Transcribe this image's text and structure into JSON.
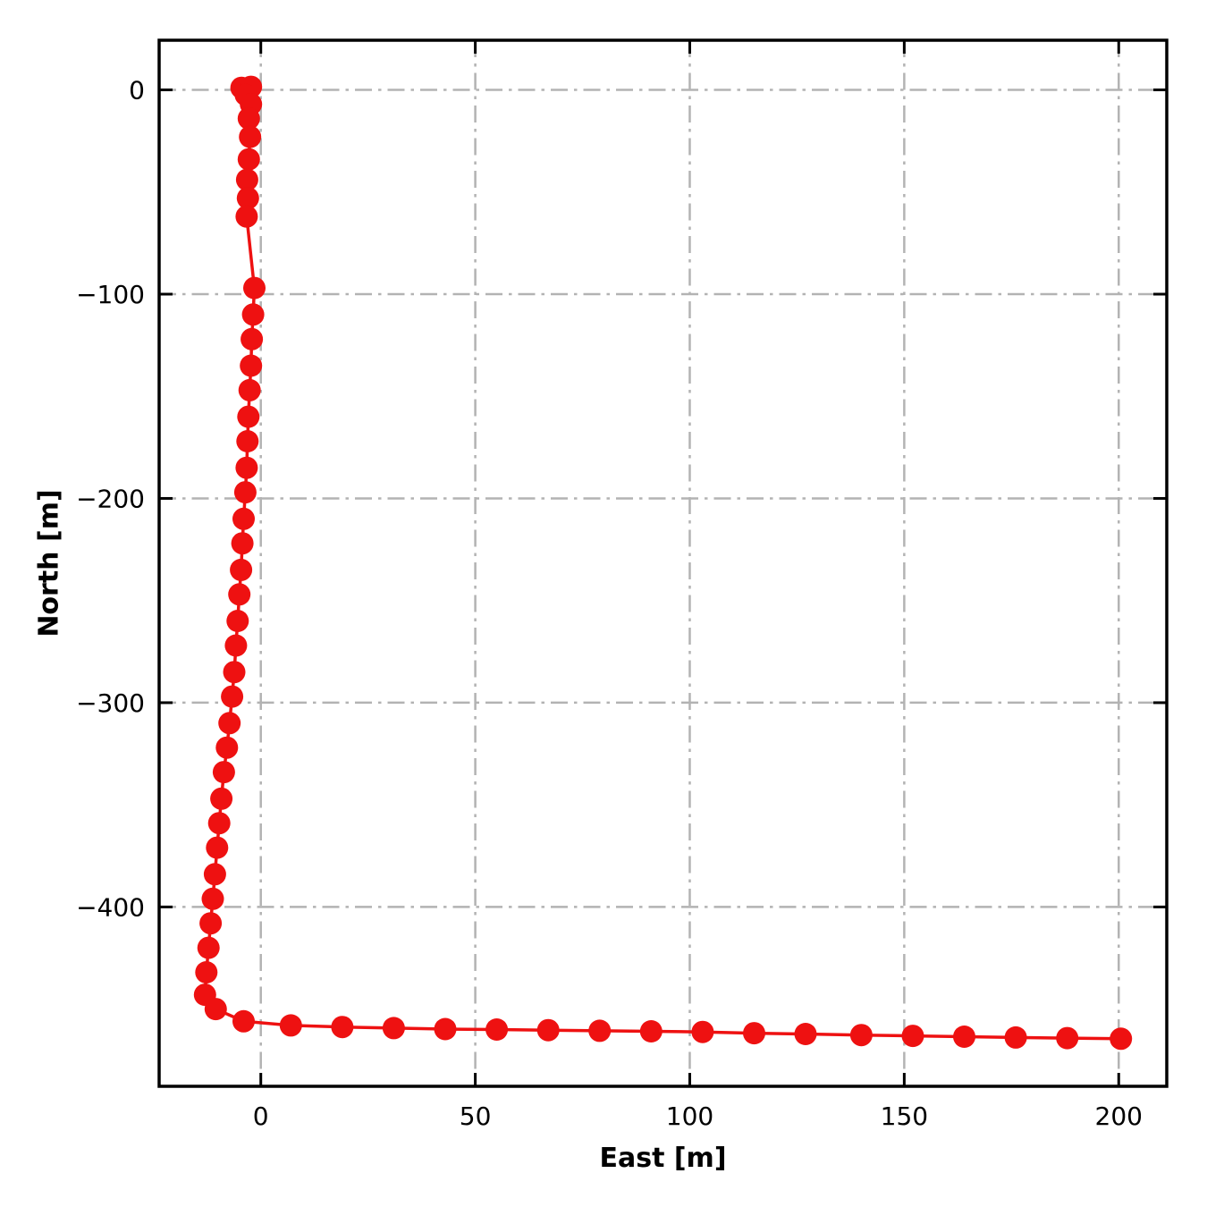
{
  "chart_data": {
    "type": "line",
    "title": "",
    "xlabel": "East [m]",
    "ylabel": "North [m]",
    "xlim": [
      -23.7,
      211.2
    ],
    "ylim": [
      -487.8,
      24.3
    ],
    "xticks": [
      0,
      50,
      100,
      150,
      200
    ],
    "xtick_labels": [
      "0",
      "50",
      "100",
      "150",
      "200"
    ],
    "yticks": [
      0,
      -100,
      -200,
      -300,
      -400
    ],
    "ytick_labels": [
      "0",
      "−100",
      "−200",
      "−300",
      "−400"
    ],
    "grid": true,
    "grid_style": "dash-dot",
    "legend": "none",
    "series": [
      {
        "name": "trajectory",
        "color": "#ee1111",
        "marker": "circle",
        "marker_radius": 12.5,
        "line_width": 3.5,
        "points": [
          [
            -4.5,
            1
          ],
          [
            -2.3,
            1.5
          ],
          [
            -3.5,
            -2.5
          ],
          [
            -2.3,
            -7
          ],
          [
            -2.8,
            -14
          ],
          [
            -2.5,
            -23
          ],
          [
            -2.8,
            -34
          ],
          [
            -3.2,
            -44
          ],
          [
            -3.0,
            -53
          ],
          [
            -3.3,
            -62
          ],
          [
            -1.5,
            -97
          ],
          [
            -1.8,
            -110
          ],
          [
            -2.1,
            -122
          ],
          [
            -2.3,
            -135
          ],
          [
            -2.6,
            -147
          ],
          [
            -2.9,
            -160
          ],
          [
            -3.1,
            -172
          ],
          [
            -3.3,
            -185
          ],
          [
            -3.6,
            -197
          ],
          [
            -4.0,
            -210
          ],
          [
            -4.3,
            -222
          ],
          [
            -4.6,
            -235
          ],
          [
            -5.0,
            -247
          ],
          [
            -5.4,
            -260
          ],
          [
            -5.8,
            -272
          ],
          [
            -6.2,
            -285
          ],
          [
            -6.7,
            -297
          ],
          [
            -7.3,
            -310
          ],
          [
            -7.9,
            -322
          ],
          [
            -8.6,
            -334
          ],
          [
            -9.2,
            -347
          ],
          [
            -9.7,
            -359
          ],
          [
            -10.2,
            -371
          ],
          [
            -10.7,
            -384
          ],
          [
            -11.2,
            -396
          ],
          [
            -11.7,
            -408
          ],
          [
            -12.2,
            -420
          ],
          [
            -12.7,
            -432
          ],
          [
            -13.0,
            -443
          ],
          [
            -10.5,
            -450
          ],
          [
            -4.0,
            -456
          ],
          [
            7,
            -458
          ],
          [
            19,
            -458.8
          ],
          [
            31,
            -459.3
          ],
          [
            43,
            -459.8
          ],
          [
            55,
            -460
          ],
          [
            67,
            -460.3
          ],
          [
            79,
            -460.6
          ],
          [
            91,
            -460.9
          ],
          [
            103,
            -461.2
          ],
          [
            115,
            -461.8
          ],
          [
            127,
            -462.2
          ],
          [
            140,
            -462.7
          ],
          [
            152,
            -463.1
          ],
          [
            164,
            -463.5
          ],
          [
            176,
            -463.9
          ],
          [
            188,
            -464.2
          ],
          [
            200.5,
            -464.5
          ]
        ]
      }
    ],
    "style": {
      "background": "#ffffff",
      "spine_color": "#000000",
      "spine_width": 3.5,
      "grid_color": "#b3b3b3",
      "grid_width": 2.5,
      "tick_color": "#000000",
      "tick_length": 15,
      "tick_width": 3,
      "tick_direction": "in",
      "ticks_on_all_sides": true
    }
  }
}
